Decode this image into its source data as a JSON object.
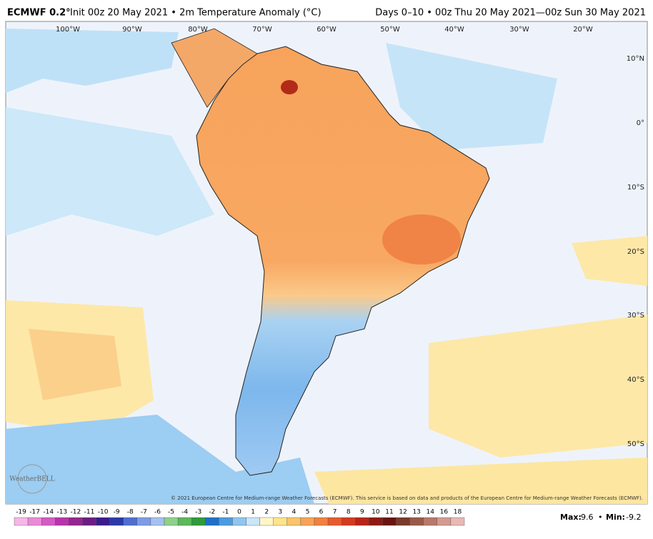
{
  "header": {
    "model": "ECMWF 0.2°",
    "init": "Init 00z 20 May 2021 • 2m Temperature Anomaly (°C)",
    "period": "Days 0–10 • 00z Thu 20 May 2021—00z Sun 30 May 2021"
  },
  "map": {
    "longitudes": [
      "100°W",
      "90°W",
      "80°W",
      "70°W",
      "60°W",
      "50°W",
      "40°W",
      "30°W",
      "20°W"
    ],
    "latitudes": [
      "10°N",
      "0°",
      "10°S",
      "20°S",
      "30°S",
      "40°S",
      "50°S"
    ],
    "logo": "WeatherBELL",
    "copyright": "© 2021 European Centre for Medium-range Weather Forecasts (ECMWF). This service is based on data and products of the European Centre for Medium-range Weather Forecasts (ECMWF)."
  },
  "colorbar": {
    "labels": [
      -19,
      -17,
      -14,
      -13,
      -12,
      -11,
      -10,
      -9,
      -8,
      -7,
      -6,
      -5,
      -4,
      -3,
      -2,
      -1,
      0,
      1,
      2,
      3,
      4,
      5,
      6,
      7,
      8,
      9,
      10,
      11,
      12,
      13,
      14,
      16,
      18
    ],
    "colors": [
      "#f7b6e8",
      "#e98ad6",
      "#d45ac4",
      "#b834ac",
      "#962590",
      "#6c1d84",
      "#3b1a8c",
      "#2b3aa8",
      "#4f6fd0",
      "#7d9be6",
      "#a7c0f2",
      "#8fd08a",
      "#5cb85a",
      "#2f9a3a",
      "#1f6fc8",
      "#4a9be0",
      "#8ec6f0",
      "#c9e6fa",
      "#fff6c8",
      "#fde48a",
      "#fbc46a",
      "#f8a256",
      "#f2803e",
      "#e85a2c",
      "#d43a1e",
      "#b8241a",
      "#8f1a14",
      "#6a1410",
      "#7a3a2a",
      "#9a5a48",
      "#b8786a",
      "#d49a90",
      "#e8b8b4"
    ]
  },
  "stats": {
    "max_label": "Max:",
    "max": 9.6,
    "separator": "•",
    "min_label": "Min:",
    "min": -9.2
  }
}
